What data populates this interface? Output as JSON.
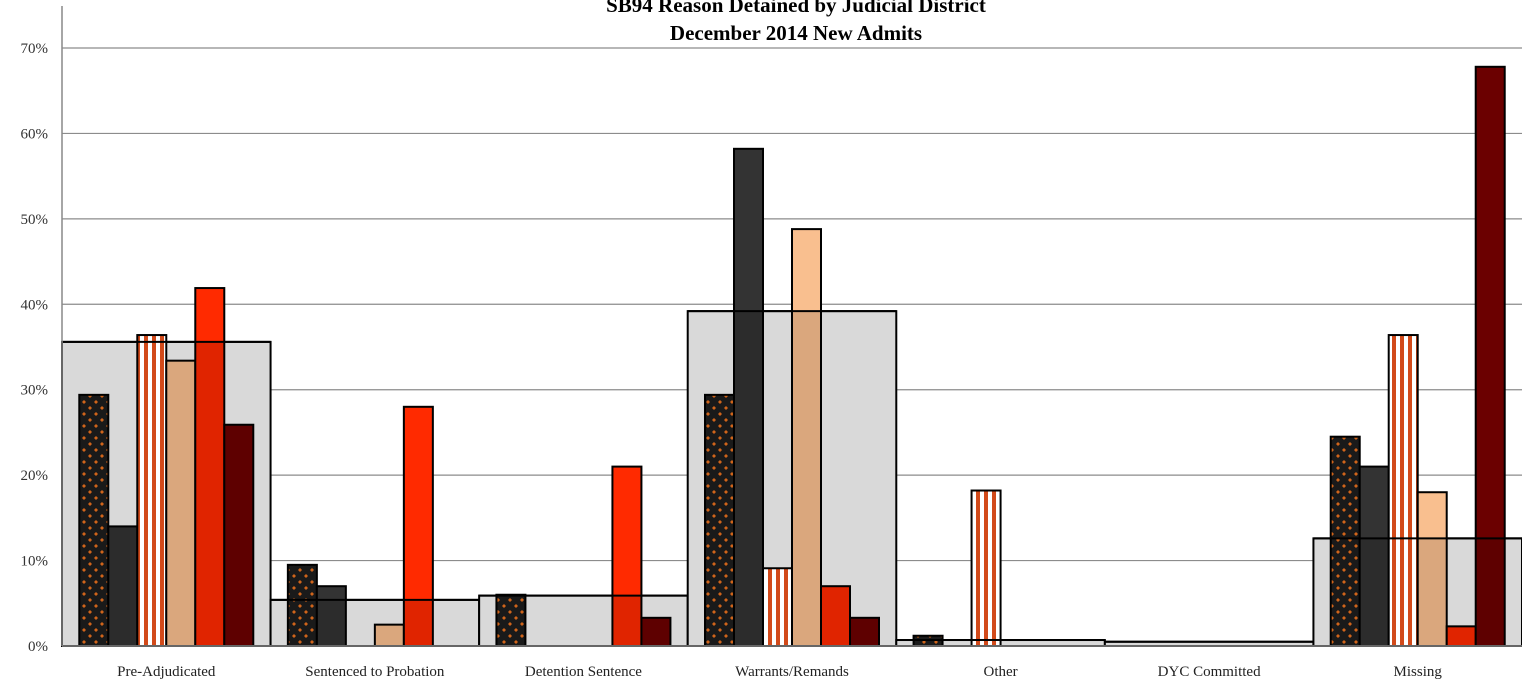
{
  "chart_data": {
    "type": "bar",
    "title": "SB94 Reason Detained by Judicial District",
    "subtitle": "December  2014 New Admits",
    "xlabel": "",
    "ylabel": "",
    "ylim": [
      0,
      0.7
    ],
    "y_ticks": [
      {
        "value": 0.0,
        "label": "0%"
      },
      {
        "value": 0.1,
        "label": "10%"
      },
      {
        "value": 0.2,
        "label": "20%"
      },
      {
        "value": 0.3,
        "label": "30%"
      },
      {
        "value": 0.4,
        "label": "40%"
      },
      {
        "value": 0.5,
        "label": "50%"
      },
      {
        "value": 0.6,
        "label": "60%"
      },
      {
        "value": 0.7,
        "label": "70%"
      }
    ],
    "grid": true,
    "legend": "none",
    "categories": [
      "Pre-Adjudicated",
      "Sentenced to Probation",
      "Detention Sentence",
      "Warrants/Remands",
      "Other",
      "DYC Committed",
      "Missing"
    ],
    "background_series": {
      "values": [
        0.356,
        0.054,
        0.059,
        0.392,
        0.007,
        0.005,
        0.126
      ],
      "color": "#d9d9d9"
    },
    "series": [
      {
        "pattern": "checker",
        "color": "#c0550f",
        "values": [
          0.294,
          0.095,
          0.06,
          0.294,
          0.012,
          0.0,
          0.245
        ]
      },
      {
        "pattern": "solid",
        "color": "#333333",
        "values": [
          0.14,
          0.07,
          0.0,
          0.582,
          0.0,
          0.0,
          0.21
        ]
      },
      {
        "pattern": "stripes",
        "color": "#d24a1a",
        "values": [
          0.364,
          0.0,
          0.0,
          0.091,
          0.182,
          0.0,
          0.364
        ]
      },
      {
        "pattern": "solid",
        "color": "#f9bf8f",
        "values": [
          0.334,
          0.025,
          0.0,
          0.488,
          0.0,
          0.0,
          0.18
        ]
      },
      {
        "pattern": "solid",
        "color": "#ff2a00",
        "values": [
          0.419,
          0.28,
          0.21,
          0.07,
          0.0,
          0.0,
          0.023
        ]
      },
      {
        "pattern": "solid",
        "color": "#6b0000",
        "values": [
          0.259,
          0.0,
          0.033,
          0.033,
          0.0,
          0.0,
          0.678
        ]
      }
    ]
  }
}
